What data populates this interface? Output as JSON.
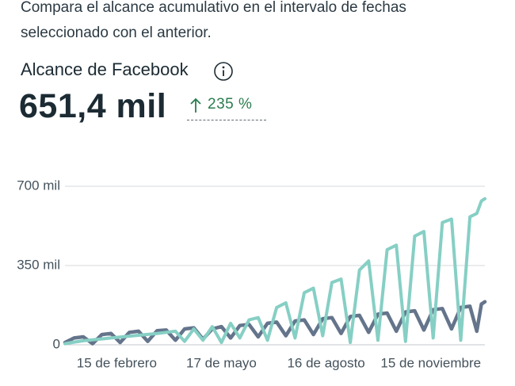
{
  "header": {
    "description": "Compara el alcance acumulativo en el intervalo de fechas seleccionado con el anterior.",
    "metric_title": "Alcance de Facebook",
    "metric_value": "651,4 mil",
    "change": "235 %"
  },
  "chart_data": {
    "type": "line",
    "x": [
      0,
      8,
      16,
      24,
      32,
      40,
      48,
      56,
      64,
      72,
      80,
      88,
      96,
      104,
      112,
      120,
      128,
      136,
      144,
      152,
      160,
      168,
      176,
      184,
      192,
      200,
      208,
      216,
      224,
      232,
      240,
      248,
      256,
      264,
      272,
      280,
      288,
      296,
      304,
      312,
      320,
      328,
      336,
      344,
      352,
      358,
      362,
      365
    ],
    "series": [
      {
        "color": "#64748b",
        "values": [
          10000,
          30000,
          35000,
          5000,
          45000,
          50000,
          10000,
          55000,
          60000,
          15000,
          62000,
          65000,
          20000,
          70000,
          75000,
          25000,
          70000,
          80000,
          30000,
          85000,
          90000,
          35000,
          95000,
          100000,
          40000,
          105000,
          110000,
          45000,
          115000,
          120000,
          50000,
          125000,
          130000,
          55000,
          135000,
          140000,
          60000,
          145000,
          150000,
          65000,
          155000,
          160000,
          70000,
          165000,
          170000,
          60000,
          180000,
          190000
        ]
      },
      {
        "color": "#86cfc4",
        "values": [
          5000,
          12000,
          18000,
          22000,
          26000,
          30000,
          34000,
          38000,
          42000,
          46000,
          50000,
          55000,
          60000,
          15000,
          70000,
          20000,
          80000,
          10000,
          95000,
          30000,
          110000,
          120000,
          20000,
          165000,
          185000,
          30000,
          230000,
          250000,
          40000,
          275000,
          290000,
          10000,
          330000,
          370000,
          20000,
          420000,
          440000,
          15000,
          480000,
          500000,
          30000,
          540000,
          555000,
          20000,
          565000,
          580000,
          635000,
          645000
        ]
      }
    ],
    "xlim": [
      0,
      365
    ],
    "xticks": [
      {
        "value": 45,
        "label": "15 de febrero"
      },
      {
        "value": 136,
        "label": "17 de mayo"
      },
      {
        "value": 227,
        "label": "16 de agosto"
      },
      {
        "value": 318,
        "label": "15 de noviembre"
      }
    ],
    "ylim": [
      0,
      700000
    ],
    "yticks": [
      {
        "value": 0,
        "label": "0"
      },
      {
        "value": 350000,
        "label": "350 mil"
      },
      {
        "value": 700000,
        "label": "700 mil"
      }
    ],
    "grid": true
  }
}
